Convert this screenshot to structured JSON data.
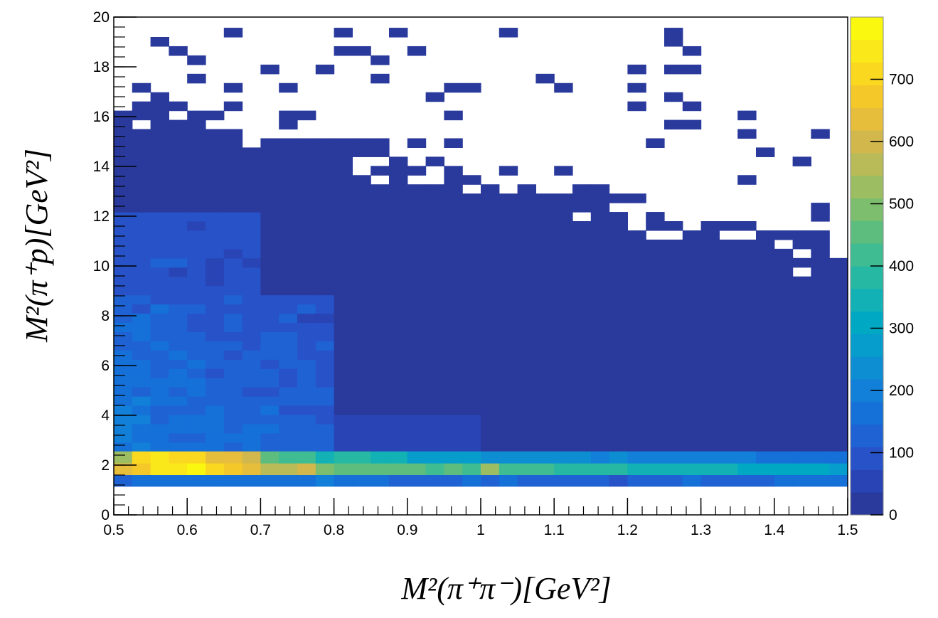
{
  "chart_data": {
    "type": "heatmap",
    "title": "",
    "xlabel": "M²(π⁺π⁻)[GeV²]",
    "ylabel": "M²(π⁺p)[GeV²]",
    "xlim": [
      0.5,
      1.5
    ],
    "ylim": [
      0,
      20
    ],
    "x_bins": 40,
    "y_bins": 54,
    "x_bin_width": 0.025,
    "y_bin_width": 0.37,
    "x_ticks": [
      {
        "value": 0.5,
        "label": "0.5"
      },
      {
        "value": 0.6,
        "label": "0.6"
      },
      {
        "value": 0.7,
        "label": "0.7"
      },
      {
        "value": 0.8,
        "label": "0.8"
      },
      {
        "value": 0.9,
        "label": "0.9"
      },
      {
        "value": 1.0,
        "label": "1"
      },
      {
        "value": 1.1,
        "label": "1.1"
      },
      {
        "value": 1.2,
        "label": "1.2"
      },
      {
        "value": 1.3,
        "label": "1.3"
      },
      {
        "value": 1.4,
        "label": "1.4"
      },
      {
        "value": 1.5,
        "label": "1.5"
      }
    ],
    "y_ticks": [
      {
        "value": 0,
        "label": "0"
      },
      {
        "value": 2,
        "label": "2"
      },
      {
        "value": 4,
        "label": "4"
      },
      {
        "value": 6,
        "label": "6"
      },
      {
        "value": 8,
        "label": "8"
      },
      {
        "value": 10,
        "label": "10"
      },
      {
        "value": 12,
        "label": "12"
      },
      {
        "value": 14,
        "label": "14"
      },
      {
        "value": 16,
        "label": "16"
      },
      {
        "value": 18,
        "label": "18"
      },
      {
        "value": 20,
        "label": "20"
      }
    ],
    "colorbar": {
      "zlim": [
        0,
        800
      ],
      "ticks": [
        {
          "value": 0,
          "label": "0"
        },
        {
          "value": 100,
          "label": "100"
        },
        {
          "value": 200,
          "label": "200"
        },
        {
          "value": 300,
          "label": "300"
        },
        {
          "value": 400,
          "label": "400"
        },
        {
          "value": 500,
          "label": "500"
        },
        {
          "value": 600,
          "label": "600"
        },
        {
          "value": 700,
          "label": "700"
        }
      ],
      "colors": [
        "#2a3a9c",
        "#2944b5",
        "#2852c8",
        "#1f62d4",
        "#1570d8",
        "#127fd8",
        "#0d8ed2",
        "#069ccb",
        "#00a8c4",
        "#11b1b5",
        "#26b8a3",
        "#3fbc91",
        "#5cbd7f",
        "#7dbe6e",
        "#9cbd62",
        "#b8bb57",
        "#d2b74c",
        "#e6be3b",
        "#f5c82a",
        "#fbd820",
        "#fbe81a",
        "#f9f80e"
      ]
    },
    "grid": false,
    "legend": "colorbar-right",
    "high_density_band": {
      "y_range": [
        1.15,
        2.55
      ],
      "lower_row_values": [
        140,
        150,
        150,
        150,
        150,
        150,
        150,
        150,
        170,
        160,
        170,
        190,
        150,
        150,
        150,
        140,
        130,
        140,
        140,
        150,
        130,
        150,
        130,
        120,
        120,
        120,
        120,
        100,
        130,
        130,
        120,
        150,
        140,
        130,
        140,
        120,
        160,
        170,
        170,
        180
      ],
      "middle_row_values": [
        640,
        690,
        750,
        760,
        780,
        720,
        690,
        630,
        580,
        560,
        590,
        480,
        470,
        470,
        470,
        450,
        440,
        420,
        440,
        430,
        510,
        400,
        410,
        400,
        380,
        380,
        370,
        370,
        360,
        350,
        350,
        330,
        340,
        350,
        300,
        300,
        320,
        300,
        300,
        290
      ],
      "upper_row_values": [
        520,
        720,
        730,
        700,
        700,
        650,
        650,
        600,
        450,
        430,
        430,
        350,
        380,
        380,
        330,
        330,
        290,
        290,
        260,
        280,
        240,
        250,
        240,
        240,
        220,
        220,
        210,
        220,
        210,
        200,
        200,
        210,
        200,
        210,
        190,
        170,
        180,
        180,
        160,
        150
      ]
    },
    "populated_region_y_max": 19.5,
    "description_levels": {
      "low_mass_x_gt_0.8_y_2.5_to_12": 25,
      "low_x_lt_0.8_y_2.5_to_9": 150,
      "tail_y_gt_12": 5
    }
  }
}
